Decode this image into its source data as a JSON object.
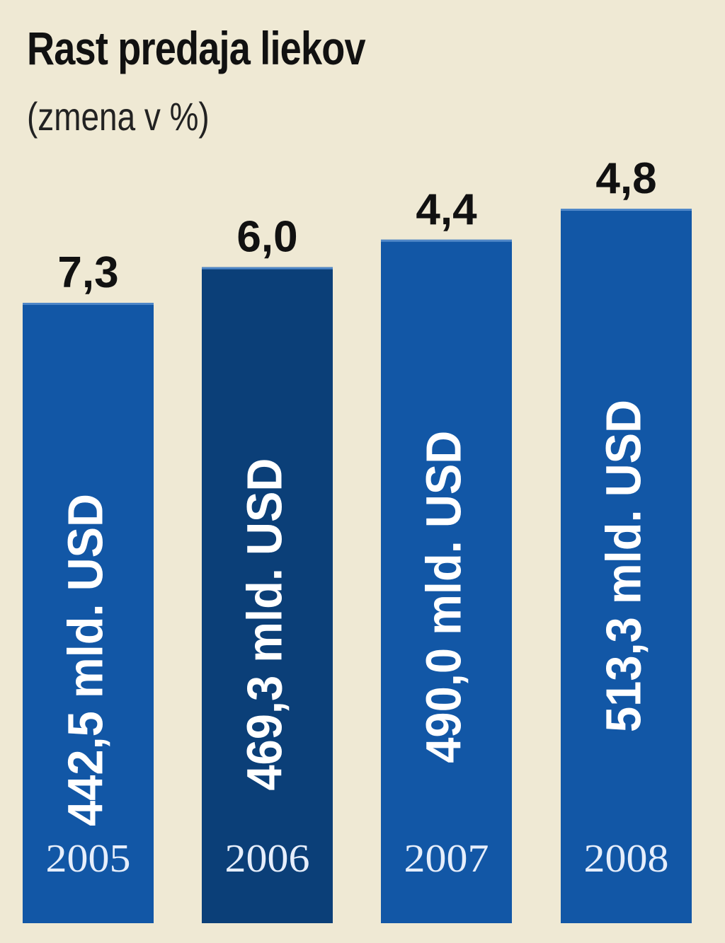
{
  "title": "Rast predaja liekov",
  "subtitle": "(zmena v %)",
  "colors": {
    "bar": "#1257a6",
    "bar_highlight": "#0b3f78",
    "background": "#efe9d4",
    "bar_text": "#ffffff",
    "year_text": "#e6eefb",
    "value_text": "#111111"
  },
  "chart_data": {
    "type": "bar",
    "categories": [
      "2005",
      "2006",
      "2007",
      "2008"
    ],
    "values": [
      7.3,
      6.0,
      4.4,
      4.8
    ],
    "value_labels": [
      "7,3",
      "6,0",
      "4,4",
      "4,8"
    ],
    "sales": [
      442.5,
      469.3,
      490.0,
      513.3
    ],
    "bar_labels": [
      "442,5 mld. USD",
      "469,3 mld. USD",
      "490,0 mld. USD",
      "513,3 mld. USD"
    ],
    "highlight_index": 1,
    "title": "Rast predaja liekov",
    "subtitle": "(zmena v %)",
    "xlabel": "",
    "ylabel": ""
  }
}
